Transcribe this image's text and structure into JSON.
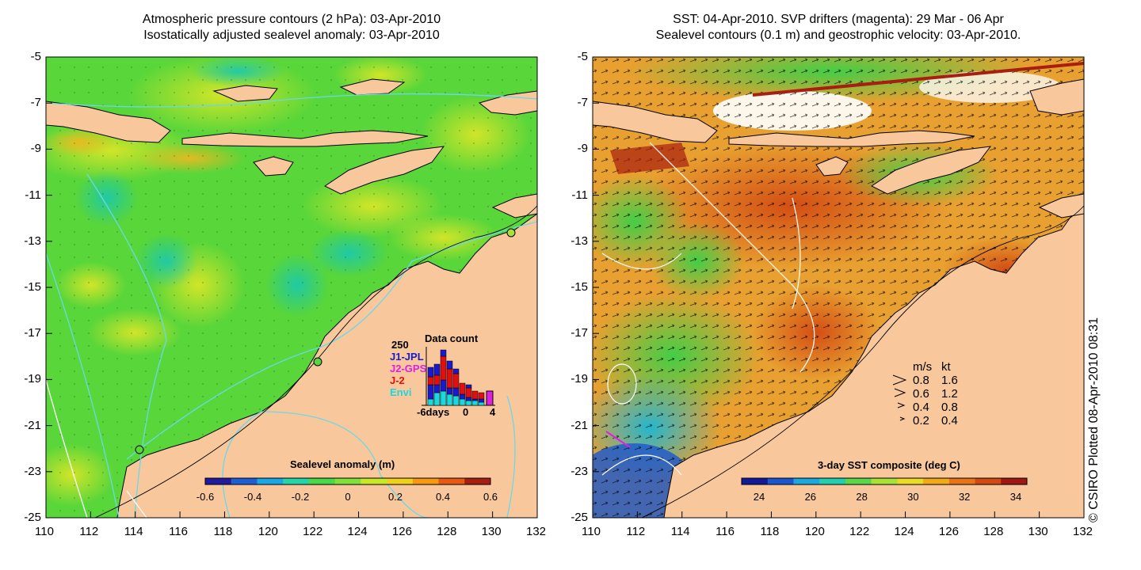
{
  "left_panel": {
    "title_line1": "Atmospheric pressure contours (2 hPa): 03-Apr-2010",
    "title_line2": "Isostatically adjusted sealevel anomaly: 03-Apr-2010",
    "colorbar": {
      "label": "Sealevel anomaly (m)",
      "ticks": [
        "-0.6",
        "-0.4",
        "-0.2",
        "0",
        "0.2",
        "0.4",
        "0.6"
      ],
      "colors": [
        "#1f1aa0",
        "#1c5fd6",
        "#18a8e8",
        "#22d6a8",
        "#48d94a",
        "#7fe23a",
        "#c8e82a",
        "#f0d21c",
        "#f79a12",
        "#e85a14",
        "#a81e10"
      ]
    },
    "inset": {
      "title": "Data count",
      "y_max_label": "250",
      "legend": [
        {
          "label": "J1-JPL",
          "color": "#1a1acc"
        },
        {
          "label": "J2-GPS",
          "color": "#e020e0"
        },
        {
          "label": "J-2",
          "color": "#e01010"
        },
        {
          "label": "Envi",
          "color": "#18d8e0"
        }
      ],
      "x_labels": [
        "-6days",
        "0",
        "4"
      ]
    }
  },
  "right_panel": {
    "title_line1": "SST: 04-Apr-2010. SVP drifters (magenta): 29 Mar - 06 Apr",
    "title_line2": "Sealevel contours (0.1 m) and geostrophic velocity: 03-Apr-2010.",
    "colorbar": {
      "label": "3-day SST composite (deg C)",
      "ticks": [
        "24",
        "26",
        "28",
        "30",
        "32",
        "34"
      ],
      "colors": [
        "#101a9a",
        "#1a56d0",
        "#1aa8e0",
        "#20d0b0",
        "#5ad84a",
        "#a8e238",
        "#e8dc28",
        "#f2aa18",
        "#e87418",
        "#d24a12",
        "#a01810"
      ]
    },
    "velocity_legend": {
      "header_ms": "m/s",
      "header_kt": "kt",
      "rows": [
        {
          "ms": "0.8",
          "kt": "1.6"
        },
        {
          "ms": "0.6",
          "kt": "1.2"
        },
        {
          "ms": "0.4",
          "kt": "0.8"
        },
        {
          "ms": "0.2",
          "kt": "0.4"
        }
      ]
    }
  },
  "axes": {
    "x_ticks": [
      "110",
      "112",
      "114",
      "116",
      "118",
      "120",
      "122",
      "124",
      "126",
      "128",
      "130",
      "132"
    ],
    "y_ticks": [
      "-5",
      "-7",
      "-9",
      "-11",
      "-13",
      "-15",
      "-17",
      "-19",
      "-21",
      "-23",
      "-25"
    ]
  },
  "colors": {
    "land": "#f8c89c",
    "ocean_left": "#58d63a",
    "ocean_right": "#e8a030"
  },
  "credit": "© CSIRO Plotted 08-Apr-2010 08:31"
}
